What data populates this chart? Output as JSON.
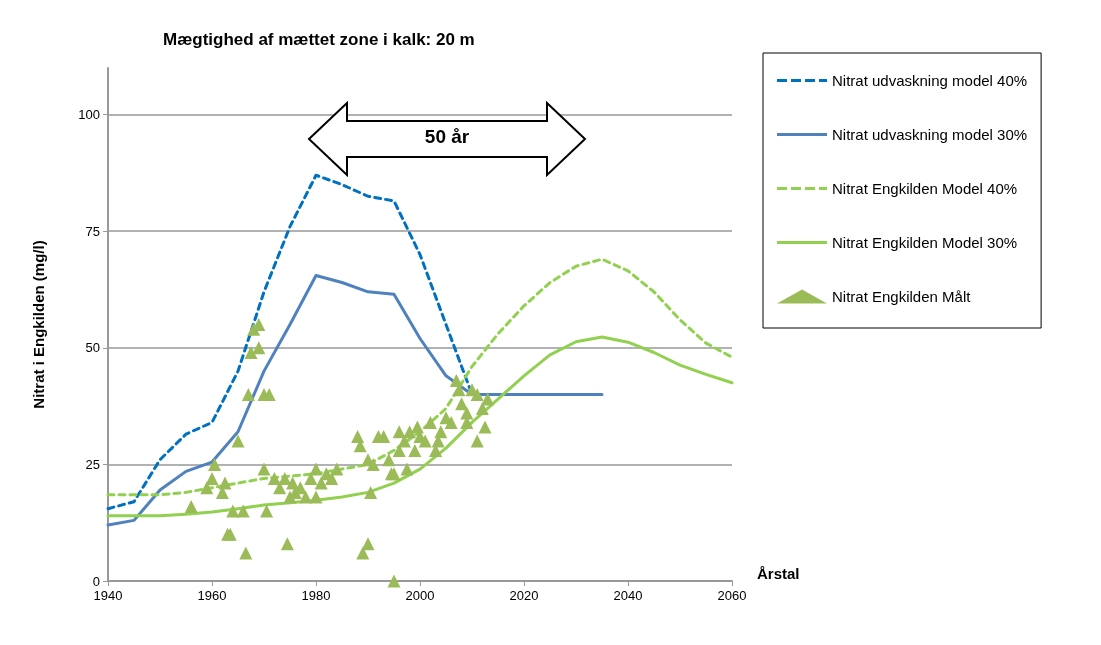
{
  "chart_data": {
    "type": "line",
    "title": "Mægtighed af mættet zone i kalk: 20 m",
    "xlabel": "Årstal",
    "ylabel": "Nitrat i Engkilden (mg/l)",
    "xlim": [
      1940,
      2060
    ],
    "xticks": [
      1940,
      1960,
      1980,
      2000,
      2020,
      2040,
      2060
    ],
    "ylim": [
      0,
      110
    ],
    "yticks": [
      0,
      25,
      50,
      75,
      100
    ],
    "grid": "y",
    "legend": "right",
    "annotations": [
      "50 år"
    ],
    "series": [
      {
        "name": "Nitrat udvaskning model 40%",
        "color": "#0070c0",
        "line_style": "dashed",
        "marker": "none",
        "x": [
          1940,
          1945,
          1950,
          1955,
          1960,
          1965,
          1970,
          1975,
          1980,
          1985,
          1990,
          1995,
          2000,
          2005,
          2010
        ],
        "values": [
          15.5,
          17,
          26,
          31.5,
          34,
          45,
          62,
          76,
          87,
          85,
          82.5,
          81.5,
          70,
          55,
          40
        ]
      },
      {
        "name": "Nitrat udvaskning model 30%",
        "color": "#4f81bd",
        "line_style": "solid",
        "marker": "none",
        "x": [
          1940,
          1945,
          1950,
          1955,
          1960,
          1965,
          1970,
          1975,
          1980,
          1985,
          1990,
          1995,
          2000,
          2005,
          2010,
          2020,
          2035
        ],
        "values": [
          12,
          13,
          19.5,
          23.5,
          25.5,
          32,
          45,
          55,
          65.5,
          64,
          62,
          61.5,
          52,
          44,
          40,
          40,
          40
        ]
      },
      {
        "name": "Nitrat Engkilden Model 40%",
        "color": "#92d050",
        "line_style": "dashed",
        "marker": "none",
        "x": [
          1940,
          1945,
          1950,
          1955,
          1960,
          1965,
          1970,
          1975,
          1980,
          1985,
          1990,
          1995,
          2000,
          2005,
          2010,
          2015,
          2020,
          2025,
          2030,
          2035,
          2040,
          2045,
          2050,
          2055,
          2060
        ],
        "values": [
          18.5,
          18.5,
          18.5,
          19,
          20,
          21,
          22,
          22.5,
          23,
          24,
          25,
          28,
          32,
          37,
          46,
          53,
          59,
          64,
          67.5,
          69,
          66.5,
          62,
          56,
          51,
          48
        ]
      },
      {
        "name": "Nitrat Engkilden Model 30%",
        "color": "#92d050",
        "line_style": "solid",
        "marker": "none",
        "x": [
          1940,
          1945,
          1950,
          1955,
          1960,
          1965,
          1970,
          1975,
          1980,
          1985,
          1990,
          1995,
          2000,
          2005,
          2010,
          2015,
          2020,
          2025,
          2030,
          2035,
          2040,
          2045,
          2050,
          2055,
          2060
        ],
        "values": [
          14,
          14,
          14,
          14.3,
          14.8,
          15.5,
          16.3,
          16.8,
          17.3,
          18,
          19,
          21,
          24,
          28.5,
          34,
          39,
          44,
          48.5,
          51.3,
          52.3,
          51.2,
          49,
          46.3,
          44.3,
          42.5
        ]
      },
      {
        "name": "Nitrat Engkilden Målt",
        "type": "scatter",
        "color": "#9bbb59",
        "marker": "triangle",
        "x": [
          1956,
          1959,
          1960,
          1960.5,
          1962,
          1962.5,
          1963,
          1963.5,
          1964,
          1965,
          1966,
          1966.5,
          1967,
          1967.5,
          1968,
          1969,
          1969,
          1970,
          1970,
          1970.5,
          1971,
          1972,
          1973,
          1974,
          1974.5,
          1975,
          1975.5,
          1976,
          1977,
          1978,
          1979,
          1980,
          1980,
          1981,
          1982,
          1983,
          1984,
          1988,
          1988.5,
          1989,
          1990,
          1990,
          1990.5,
          1991,
          1992,
          1993,
          1994,
          1994.5,
          1995,
          1995,
          1996,
          1996,
          1997,
          1997.5,
          1998,
          1999,
          1999.5,
          2000,
          2001,
          2002,
          2003,
          2003.5,
          2004,
          2005,
          2006,
          2007,
          2007.5,
          2008,
          2009,
          2009,
          2010,
          2011,
          2011,
          2012,
          2012.5,
          2013
        ],
        "values": [
          16,
          20,
          22,
          25,
          19,
          21,
          10,
          10,
          15,
          30,
          15,
          6,
          40,
          49,
          54,
          55,
          50,
          40,
          24,
          15,
          40,
          22,
          20,
          22,
          8,
          18,
          21,
          19,
          20,
          18,
          22,
          24,
          18,
          21,
          23,
          22,
          24,
          31,
          29,
          6,
          26,
          8,
          19,
          25,
          31,
          31,
          26,
          23,
          0,
          23,
          32,
          28,
          30,
          24,
          32,
          28,
          33,
          31,
          30,
          34,
          28,
          30,
          32,
          35,
          34,
          43,
          41,
          38,
          34,
          36,
          41,
          30,
          40,
          37,
          33,
          39
        ]
      }
    ]
  }
}
